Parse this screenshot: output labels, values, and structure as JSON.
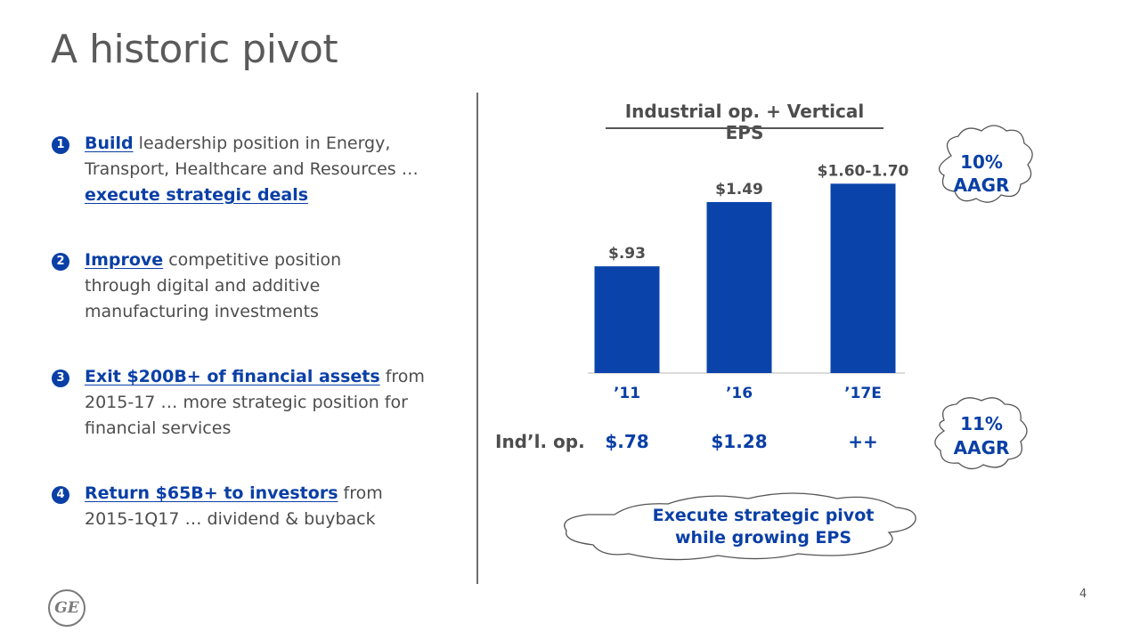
{
  "slide": {
    "title": "A historic pivot",
    "page_number": "4",
    "logo_text": "GE"
  },
  "pillars": [
    {
      "num": "1",
      "lead": "Build",
      "text": " leadership position in Energy, Transport, Healthcare and Resources … ",
      "tail_underlined": "execute strategic deals",
      "tail": ""
    },
    {
      "num": "2",
      "lead": "Improve",
      "text": " competitive position through digital and additive manufacturing investments",
      "tail_underlined": "",
      "tail": ""
    },
    {
      "num": "3",
      "lead": "Exit $200B+ of financial assets",
      "text": " from 2015-17 … more strategic position for financial services",
      "tail_underlined": "",
      "tail": ""
    },
    {
      "num": "4",
      "lead": "Return $65B+ to investors",
      "text": " from 2015-1Q17 … dividend & buyback",
      "tail_underlined": "",
      "tail": ""
    }
  ],
  "chart_data": {
    "type": "bar",
    "title": "Industrial op. + Vertical EPS",
    "categories": [
      "’11",
      "’16",
      "’17E"
    ],
    "values": [
      0.93,
      1.49,
      1.65
    ],
    "data_labels": [
      "$.93",
      "$1.49",
      "$1.60-1.70"
    ],
    "xlabel": "",
    "ylabel": "",
    "ylim": [
      0,
      1.8
    ],
    "grid": false,
    "bar_color": "#0a44ab",
    "growth_top": {
      "line1": "10%",
      "line2": "AAGR"
    },
    "secondary_row": {
      "label": "Ind’l. op.",
      "values": [
        "$.78",
        "$1.28",
        "++"
      ]
    },
    "growth_bottom": {
      "line1": "11%",
      "line2": "AAGR"
    },
    "callout": {
      "line1": "Execute strategic pivot",
      "line2": "while growing EPS"
    }
  },
  "colors": {
    "accent": "#0a3fa6",
    "text": "#4d4d4d"
  }
}
